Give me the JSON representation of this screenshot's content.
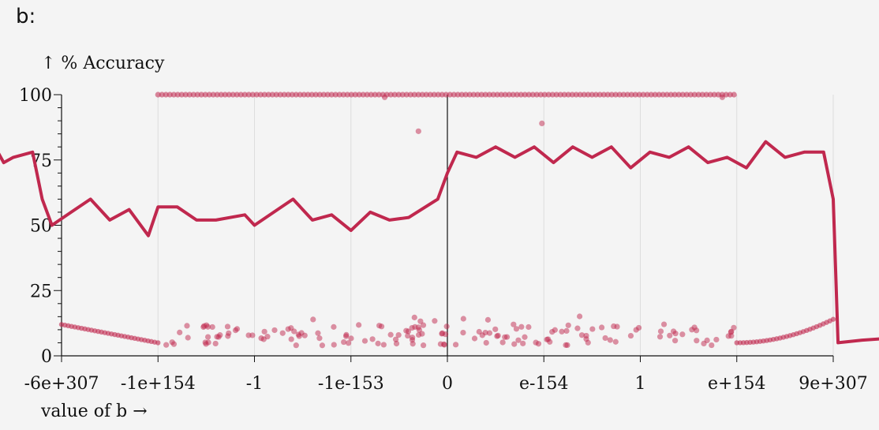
{
  "section_label": "b:",
  "chart_data": {
    "type": "scatter",
    "ylabel": "↑ % Accuracy",
    "xlabel": "value of b →",
    "ylim": [
      0,
      100
    ],
    "y_ticks": [
      0,
      25,
      50,
      75,
      100
    ],
    "x_ticks": [
      "-6e+307",
      "-1e+154",
      "-1",
      "-1e-153",
      "0",
      "e-154",
      "1",
      "e+154",
      "9e+307"
    ],
    "grid": true,
    "colors": {
      "series": "#c0284e",
      "background": "#f4f4f4",
      "grid": "#dddddd",
      "zero_line": "#111111"
    },
    "series": [
      {
        "kind": "line",
        "description_points": [
          [
            -4,
            12
          ],
          [
            -3.5,
            8
          ],
          [
            -3.2,
            6
          ],
          [
            -3.0,
            5
          ],
          [
            -2.98,
            50
          ],
          [
            -2.95,
            78
          ],
          [
            -2.8,
            80
          ],
          [
            -2.6,
            72
          ],
          [
            -2.4,
            84
          ],
          [
            -2.25,
            76
          ],
          [
            -2.1,
            80
          ],
          [
            -1.9,
            76
          ],
          [
            -1.7,
            80
          ],
          [
            -1.55,
            74
          ],
          [
            -1.4,
            80
          ],
          [
            -1.25,
            72
          ],
          [
            -1.1,
            82
          ],
          [
            -0.95,
            76
          ],
          [
            -0.75,
            84
          ],
          [
            -0.6,
            74
          ],
          [
            -0.5,
            76
          ],
          [
            -0.3,
            78
          ],
          [
            -0.2,
            60
          ],
          [
            -0.1,
            50
          ],
          [
            0.1,
            55
          ],
          [
            0.3,
            60
          ],
          [
            0.5,
            52
          ],
          [
            0.7,
            56
          ],
          [
            0.9,
            46
          ],
          [
            1.0,
            57
          ],
          [
            1.2,
            57
          ],
          [
            1.4,
            52
          ],
          [
            1.6,
            52
          ],
          [
            1.9,
            54
          ],
          [
            2.0,
            50
          ],
          [
            2.2,
            55
          ],
          [
            2.4,
            60
          ],
          [
            2.6,
            52
          ],
          [
            2.8,
            54
          ],
          [
            3.0,
            48
          ],
          [
            3.2,
            55
          ],
          [
            3.4,
            52
          ],
          [
            3.6,
            53
          ],
          [
            3.9,
            60
          ],
          [
            4.0,
            70
          ],
          [
            4.1,
            78
          ],
          [
            4.3,
            76
          ],
          [
            4.5,
            80
          ],
          [
            4.7,
            76
          ],
          [
            4.9,
            80
          ],
          [
            5.1,
            74
          ],
          [
            5.3,
            80
          ],
          [
            5.5,
            76
          ],
          [
            5.7,
            80
          ],
          [
            5.9,
            72
          ],
          [
            6.1,
            78
          ],
          [
            6.3,
            76
          ],
          [
            6.5,
            80
          ],
          [
            6.7,
            74
          ],
          [
            6.9,
            76
          ],
          [
            7.1,
            72
          ],
          [
            7.3,
            82
          ],
          [
            7.5,
            76
          ],
          [
            7.7,
            78
          ],
          [
            7.9,
            78
          ],
          [
            8.0,
            60
          ],
          [
            8.05,
            5
          ],
          [
            8.3,
            6
          ],
          [
            8.7,
            7
          ],
          [
            9.0,
            9
          ],
          [
            9.2,
            11
          ],
          [
            9.4,
            14
          ]
        ]
      }
    ]
  }
}
